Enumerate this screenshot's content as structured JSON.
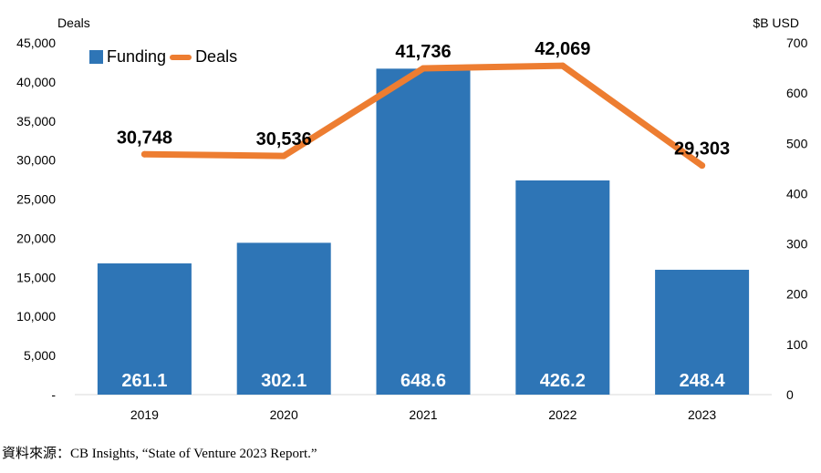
{
  "chart_data": {
    "type": "bar",
    "categories": [
      "2019",
      "2020",
      "2021",
      "2022",
      "2023"
    ],
    "series": [
      {
        "name": "Funding",
        "chart": "bar",
        "axis": "right",
        "values": [
          261.1,
          302.1,
          648.6,
          426.2,
          248.4
        ],
        "labels": [
          "261.1",
          "302.1",
          "648.6",
          "426.2",
          "248.4"
        ],
        "color": "#2E75B6"
      },
      {
        "name": "Deals",
        "chart": "line",
        "axis": "left",
        "values": [
          30748,
          30536,
          41736,
          42069,
          29303
        ],
        "labels": [
          "30,748",
          "30,536",
          "41,736",
          "42,069",
          "29,303"
        ],
        "color": "#ED7D31"
      }
    ],
    "left_axis": {
      "title": "Deals",
      "ylim": [
        0,
        45000
      ],
      "ticks": [
        "-",
        "5,000",
        "10,000",
        "15,000",
        "20,000",
        "25,000",
        "30,000",
        "35,000",
        "40,000",
        "45,000"
      ]
    },
    "right_axis": {
      "title": "$B USD",
      "ylim": [
        0,
        700
      ],
      "ticks": [
        "0",
        "100",
        "200",
        "300",
        "400",
        "500",
        "600",
        "700"
      ]
    },
    "legend": {
      "position": "top-left"
    },
    "grid": false
  },
  "source": "資料來源：CB Insights, “State of Venture 2023 Report.”"
}
